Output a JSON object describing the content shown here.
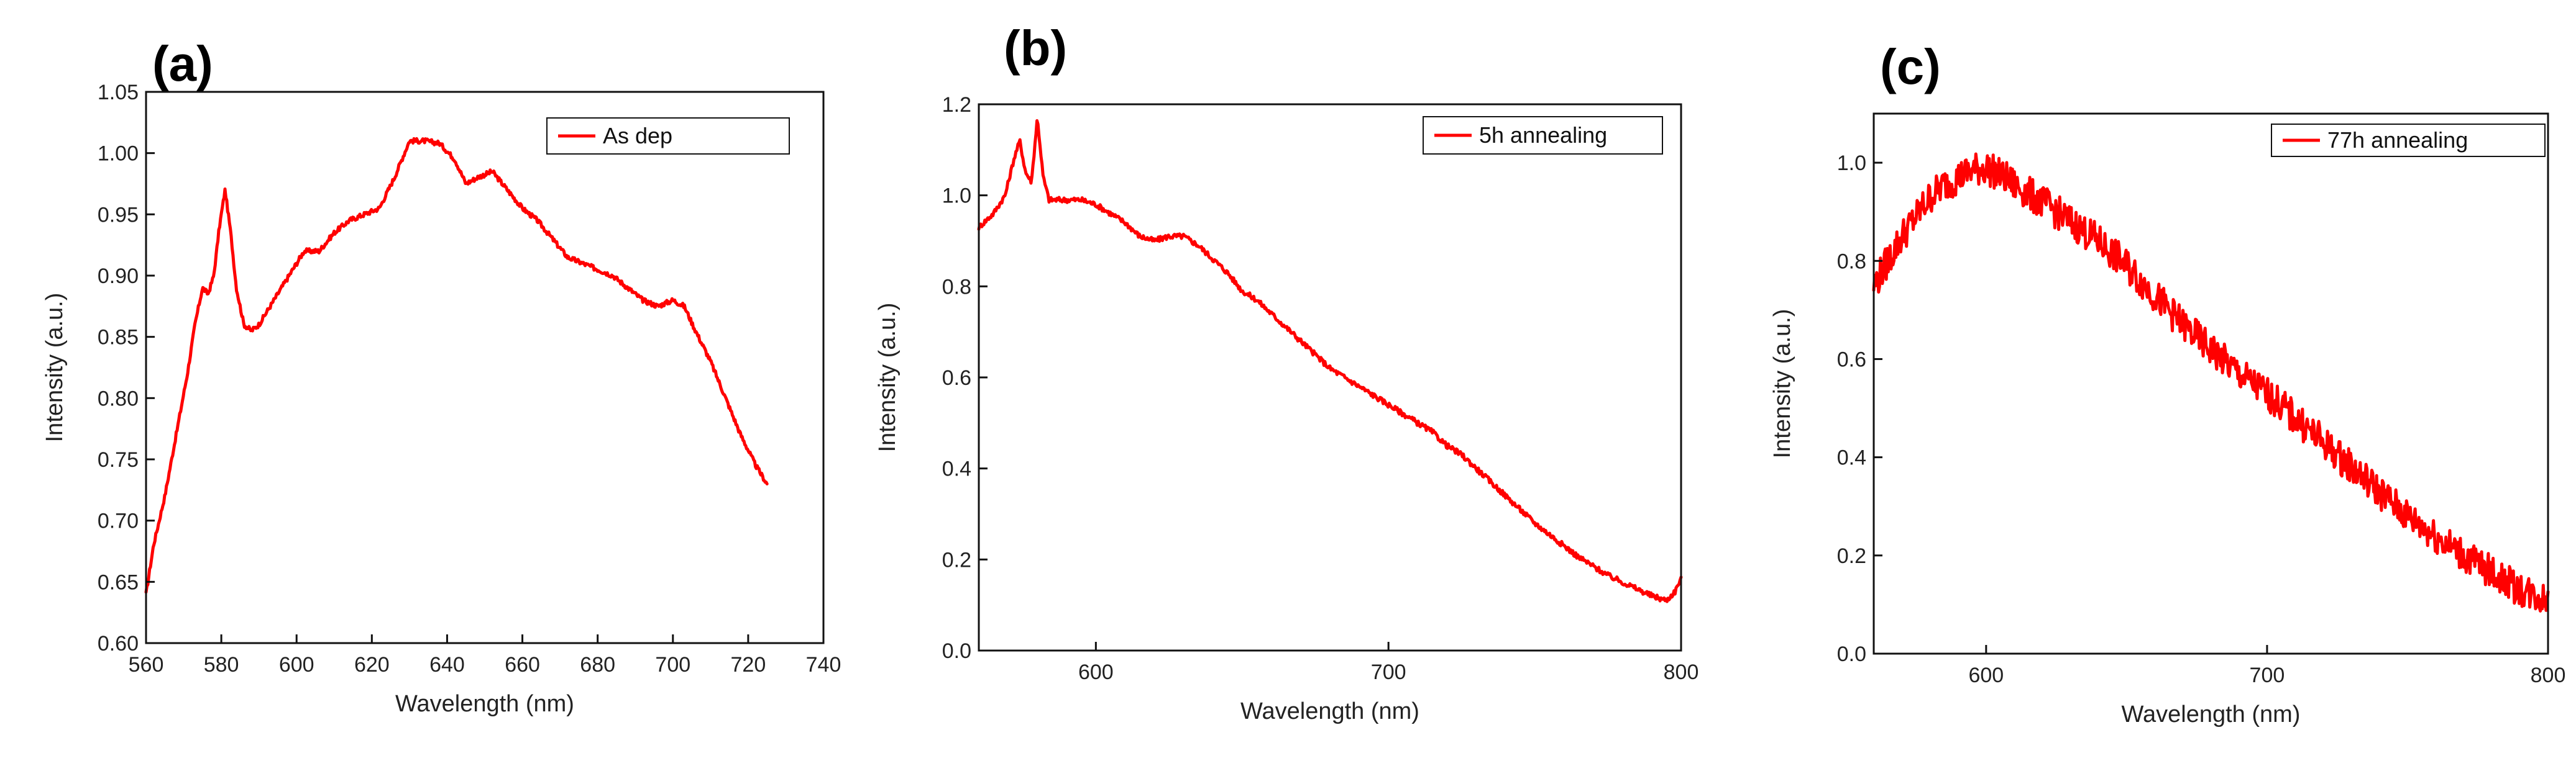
{
  "chart_data": [
    {
      "type": "line",
      "panel_label": "(a)",
      "xlabel": "Wavelength (nm)",
      "ylabel": "Intensity (a.u.)",
      "xlim": [
        560,
        740
      ],
      "ylim": [
        0.6,
        1.05
      ],
      "xticks": [
        560,
        580,
        600,
        620,
        640,
        660,
        680,
        700,
        720,
        740
      ],
      "xtick_labels": [
        "560",
        "580",
        "600",
        "620",
        "640",
        "660",
        "680",
        "700",
        "720",
        "740"
      ],
      "yticks": [
        0.6,
        0.65,
        0.7,
        0.75,
        0.8,
        0.85,
        0.9,
        0.95,
        1.0,
        1.05
      ],
      "ytick_labels": [
        "0.60",
        "0.65",
        "0.70",
        "0.75",
        "0.80",
        "0.85",
        "0.90",
        "0.95",
        "1.00",
        "1.05"
      ],
      "legend": "top-right",
      "series": [
        {
          "name": "As dep",
          "color": "#ff0000",
          "noise": 0.002,
          "x": [
            560,
            562,
            565,
            568,
            571,
            573,
            575,
            576.5,
            578,
            579.5,
            581,
            582.5,
            584,
            586,
            588,
            590,
            594,
            598,
            602,
            606,
            610,
            614,
            618,
            622,
            626,
            630,
            634,
            638,
            642,
            645,
            648,
            652,
            656,
            660,
            664,
            668,
            672,
            676,
            680,
            684,
            688,
            692,
            696,
            700,
            703,
            706,
            710,
            714,
            718,
            722,
            725
          ],
          "y": [
            0.64,
            0.68,
            0.72,
            0.77,
            0.82,
            0.86,
            0.89,
            0.885,
            0.9,
            0.94,
            0.97,
            0.935,
            0.89,
            0.86,
            0.855,
            0.86,
            0.88,
            0.9,
            0.92,
            0.92,
            0.935,
            0.945,
            0.95,
            0.955,
            0.98,
            1.01,
            1.01,
            1.008,
            0.995,
            0.975,
            0.98,
            0.985,
            0.97,
            0.955,
            0.945,
            0.93,
            0.915,
            0.91,
            0.905,
            0.9,
            0.89,
            0.88,
            0.875,
            0.88,
            0.875,
            0.855,
            0.83,
            0.8,
            0.77,
            0.745,
            0.73
          ]
        }
      ]
    },
    {
      "type": "line",
      "panel_label": "(b)",
      "xlabel": "Wavelength (nm)",
      "ylabel": "Intensity (a.u.)",
      "xlim": [
        560,
        800
      ],
      "ylim": [
        0.0,
        1.2
      ],
      "xticks": [
        600,
        700,
        800
      ],
      "xtick_labels": [
        "600",
        "700",
        "800"
      ],
      "yticks": [
        0.0,
        0.2,
        0.4,
        0.6,
        0.8,
        1.0,
        1.2
      ],
      "ytick_labels": [
        "0.0",
        "0.2",
        "0.4",
        "0.6",
        "0.8",
        "1.0",
        "1.2"
      ],
      "legend": "top-right",
      "series": [
        {
          "name": "5h annealing",
          "color": "#ff0000",
          "noise": 0.006,
          "x": [
            560,
            565,
            569,
            572,
            574,
            576,
            578,
            580,
            582,
            584,
            587,
            590,
            595,
            600,
            605,
            610,
            615,
            620,
            625,
            630,
            635,
            640,
            645,
            650,
            655,
            660,
            665,
            670,
            675,
            680,
            685,
            690,
            695,
            700,
            705,
            710,
            715,
            720,
            725,
            730,
            735,
            740,
            745,
            750,
            755,
            760,
            765,
            770,
            775,
            780,
            785,
            790,
            795,
            798,
            800
          ],
          "y": [
            0.93,
            0.96,
            1.0,
            1.08,
            1.12,
            1.05,
            1.03,
            1.17,
            1.04,
            0.99,
            0.99,
            0.99,
            0.99,
            0.98,
            0.96,
            0.94,
            0.91,
            0.9,
            0.91,
            0.91,
            0.89,
            0.86,
            0.83,
            0.79,
            0.77,
            0.74,
            0.71,
            0.68,
            0.65,
            0.62,
            0.6,
            0.58,
            0.56,
            0.54,
            0.52,
            0.5,
            0.48,
            0.45,
            0.43,
            0.4,
            0.37,
            0.34,
            0.31,
            0.28,
            0.255,
            0.23,
            0.205,
            0.185,
            0.165,
            0.15,
            0.135,
            0.12,
            0.11,
            0.13,
            0.16
          ]
        }
      ]
    },
    {
      "type": "line",
      "panel_label": "(c)",
      "xlabel": "Wavelength (nm)",
      "ylabel": "Intensity (a.u.)",
      "xlim": [
        560,
        800
      ],
      "ylim": [
        0.0,
        1.1
      ],
      "xticks": [
        600,
        700,
        800
      ],
      "xtick_labels": [
        "600",
        "700",
        "800"
      ],
      "yticks": [
        0.0,
        0.2,
        0.4,
        0.6,
        0.8,
        1.0
      ],
      "ytick_labels": [
        "0.0",
        "0.2",
        "0.4",
        "0.6",
        "0.8",
        "1.0"
      ],
      "legend": "top-right",
      "series": [
        {
          "name": "77h annealing",
          "color": "#ff0000",
          "noise": 0.035,
          "x": [
            560,
            565,
            570,
            575,
            580,
            585,
            590,
            595,
            600,
            605,
            610,
            620,
            630,
            640,
            650,
            660,
            670,
            680,
            690,
            700,
            710,
            720,
            730,
            740,
            750,
            760,
            770,
            780,
            790,
            800
          ],
          "y": [
            0.75,
            0.8,
            0.85,
            0.89,
            0.93,
            0.955,
            0.97,
            0.985,
            0.99,
            0.975,
            0.955,
            0.92,
            0.88,
            0.84,
            0.79,
            0.73,
            0.67,
            0.62,
            0.57,
            0.53,
            0.48,
            0.43,
            0.38,
            0.33,
            0.28,
            0.24,
            0.2,
            0.165,
            0.13,
            0.11
          ]
        }
      ]
    }
  ]
}
